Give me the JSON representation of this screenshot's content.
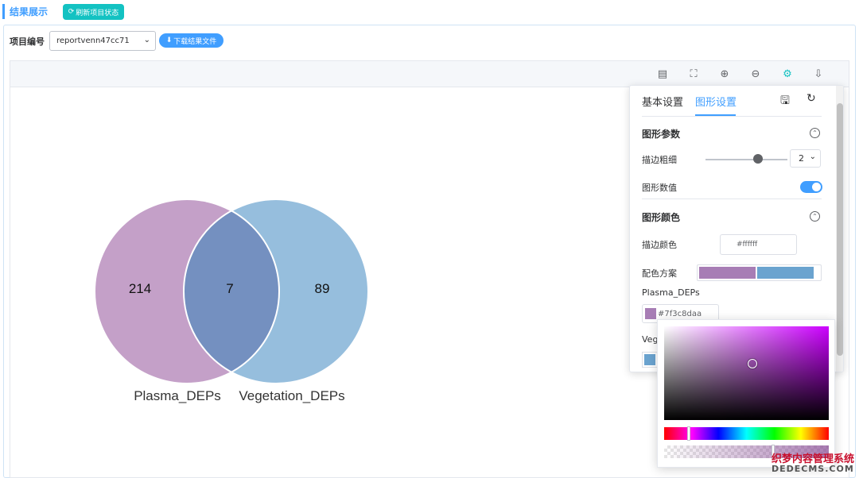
{
  "header": {
    "section_title": "结果展示",
    "refresh_label": "刷新项目状态",
    "refresh_color": "#13c2c2"
  },
  "project": {
    "label": "项目编号",
    "selected": "reportvenn47cc71",
    "download_label": "下载结果文件"
  },
  "toolbar": {
    "icons": [
      "table-icon",
      "fullscreen-icon",
      "zoom-in-icon",
      "zoom-out-icon",
      "settings-icon",
      "cloud-download-icon"
    ]
  },
  "chart_data": {
    "type": "venn",
    "sets": [
      {
        "name": "Plasma_DEPs",
        "only": 214,
        "color": "#7f3c8daa"
      },
      {
        "name": "Vegetation_DEPs",
        "only": 89,
        "color": "#6aa3cf"
      }
    ],
    "intersection": 7,
    "stroke_color": "#ffffff",
    "stroke_width": 2
  },
  "settings": {
    "tabs": [
      "基本设置",
      "图形设置"
    ],
    "active_tab": "图形设置",
    "params_title": "图形参数",
    "stroke_width_label": "描边粗细",
    "stroke_width_value": "2",
    "slider_value_fraction": 0.67,
    "show_values_label": "图形数值",
    "show_values": true,
    "color_title": "图形颜色",
    "stroke_color_label": "描边颜色",
    "stroke_color_value": "#ffffff",
    "scheme_label": "配色方案",
    "series_label_1": "Plasma_DEPs",
    "series_color_1": "#7f3c8daa",
    "series_label_2_partial": "Veg"
  },
  "watermark": {
    "line1": "织梦内容管理系统",
    "line2": "DEDECMS.COM"
  }
}
